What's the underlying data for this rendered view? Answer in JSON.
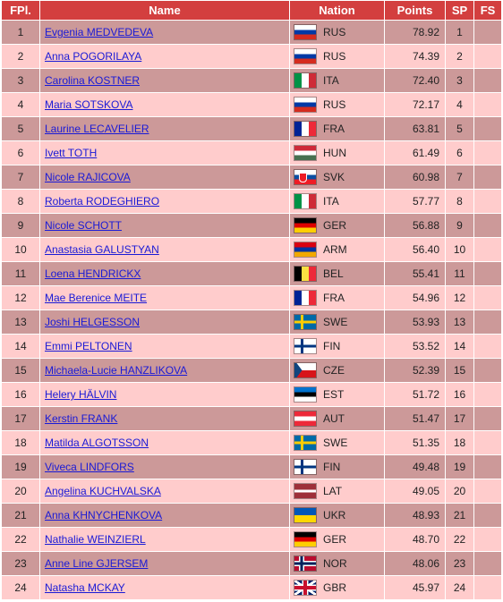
{
  "columns": {
    "fpl": "FPl.",
    "name": "Name",
    "nation": "Nation",
    "points": "Points",
    "sp": "SP",
    "fs": "FS"
  },
  "rows": [
    {
      "fpl": "1",
      "name": "Evgenia MEDVEDEVA",
      "nation": "RUS",
      "points": "78.92",
      "sp": "1",
      "fs": ""
    },
    {
      "fpl": "2",
      "name": "Anna POGORILAYA",
      "nation": "RUS",
      "points": "74.39",
      "sp": "2",
      "fs": ""
    },
    {
      "fpl": "3",
      "name": "Carolina KOSTNER",
      "nation": "ITA",
      "points": "72.40",
      "sp": "3",
      "fs": ""
    },
    {
      "fpl": "4",
      "name": "Maria SOTSKOVA",
      "nation": "RUS",
      "points": "72.17",
      "sp": "4",
      "fs": ""
    },
    {
      "fpl": "5",
      "name": "Laurine LECAVELIER",
      "nation": "FRA",
      "points": "63.81",
      "sp": "5",
      "fs": ""
    },
    {
      "fpl": "6",
      "name": "Ivett TOTH",
      "nation": "HUN",
      "points": "61.49",
      "sp": "6",
      "fs": ""
    },
    {
      "fpl": "7",
      "name": "Nicole RAJICOVA",
      "nation": "SVK",
      "points": "60.98",
      "sp": "7",
      "fs": ""
    },
    {
      "fpl": "8",
      "name": "Roberta RODEGHIERO",
      "nation": "ITA",
      "points": "57.77",
      "sp": "8",
      "fs": ""
    },
    {
      "fpl": "9",
      "name": "Nicole SCHOTT",
      "nation": "GER",
      "points": "56.88",
      "sp": "9",
      "fs": ""
    },
    {
      "fpl": "10",
      "name": "Anastasia GALUSTYAN",
      "nation": "ARM",
      "points": "56.40",
      "sp": "10",
      "fs": ""
    },
    {
      "fpl": "11",
      "name": "Loena HENDRICKX",
      "nation": "BEL",
      "points": "55.41",
      "sp": "11",
      "fs": ""
    },
    {
      "fpl": "12",
      "name": "Mae Berenice MEITE",
      "nation": "FRA",
      "points": "54.96",
      "sp": "12",
      "fs": ""
    },
    {
      "fpl": "13",
      "name": "Joshi HELGESSON",
      "nation": "SWE",
      "points": "53.93",
      "sp": "13",
      "fs": ""
    },
    {
      "fpl": "14",
      "name": "Emmi PELTONEN",
      "nation": "FIN",
      "points": "53.52",
      "sp": "14",
      "fs": ""
    },
    {
      "fpl": "15",
      "name": "Michaela-Lucie HANZLIKOVA",
      "nation": "CZE",
      "points": "52.39",
      "sp": "15",
      "fs": ""
    },
    {
      "fpl": "16",
      "name": "Helery HÄLVIN",
      "nation": "EST",
      "points": "51.72",
      "sp": "16",
      "fs": ""
    },
    {
      "fpl": "17",
      "name": "Kerstin FRANK",
      "nation": "AUT",
      "points": "51.47",
      "sp": "17",
      "fs": ""
    },
    {
      "fpl": "18",
      "name": "Matilda ALGOTSSON",
      "nation": "SWE",
      "points": "51.35",
      "sp": "18",
      "fs": ""
    },
    {
      "fpl": "19",
      "name": "Viveca LINDFORS",
      "nation": "FIN",
      "points": "49.48",
      "sp": "19",
      "fs": ""
    },
    {
      "fpl": "20",
      "name": "Angelina KUCHVALSKA",
      "nation": "LAT",
      "points": "49.05",
      "sp": "20",
      "fs": ""
    },
    {
      "fpl": "21",
      "name": "Anna KHNYCHENKOVA",
      "nation": "UKR",
      "points": "48.93",
      "sp": "21",
      "fs": ""
    },
    {
      "fpl": "22",
      "name": "Nathalie WEINZIERL",
      "nation": "GER",
      "points": "48.70",
      "sp": "22",
      "fs": ""
    },
    {
      "fpl": "23",
      "name": "Anne Line GJERSEM",
      "nation": "NOR",
      "points": "48.06",
      "sp": "23",
      "fs": ""
    },
    {
      "fpl": "24",
      "name": "Natasha MCKAY",
      "nation": "GBR",
      "points": "45.97",
      "sp": "24",
      "fs": ""
    }
  ],
  "colors": {
    "header_bg": "#d33f3f",
    "row_dark": "#cc9999",
    "row_light": "#ffcccc",
    "link": "#1a1ad6"
  }
}
